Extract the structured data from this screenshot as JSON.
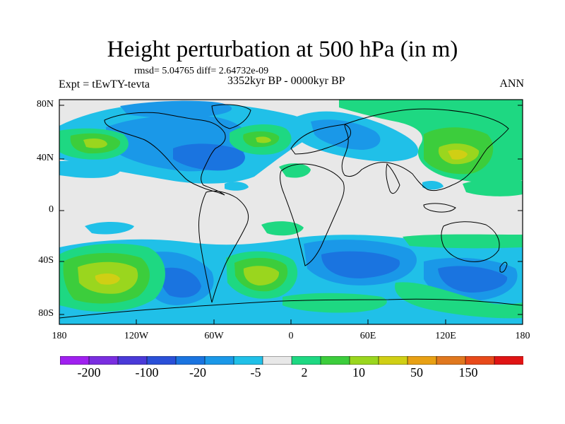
{
  "title": "Height perturbation at 500 hPa (in m)",
  "stats": "rmsd= 5.04765 diff= 2.64732e-09",
  "experiment": "Expt = tEwTY-tevta",
  "period": "3352kyr BP - 0000kyr BP",
  "season": "ANN",
  "lat_labels": [
    "80N",
    "40N",
    "0",
    "40S",
    "80S"
  ],
  "lon_labels": [
    "180",
    "120W",
    "60W",
    "0",
    "60E",
    "120E",
    "180"
  ],
  "colorbar": {
    "colors": [
      "#a020f0",
      "#7a2ee0",
      "#4a3ad8",
      "#2a50d8",
      "#1a74e0",
      "#1a98e8",
      "#20c0e8",
      "#e8e8e8",
      "#1ed882",
      "#3ccd3c",
      "#9ad61e",
      "#d0cf14",
      "#e8a014",
      "#e0781e",
      "#e84a1a",
      "#e01414"
    ],
    "labels": [
      "-200",
      "-100",
      "-20",
      "-5",
      "2",
      "10",
      "50",
      "150"
    ]
  },
  "map": {
    "colors": {
      "neutral": "#e8e8e8",
      "c_m5": "#20c0e8",
      "c_m20": "#1a98e8",
      "c_m50": "#1a74e0",
      "c_p2": "#1ed882",
      "c_p10": "#3ccd3c",
      "c_p20": "#9ad61e",
      "c_p50": "#d0cf14"
    }
  }
}
